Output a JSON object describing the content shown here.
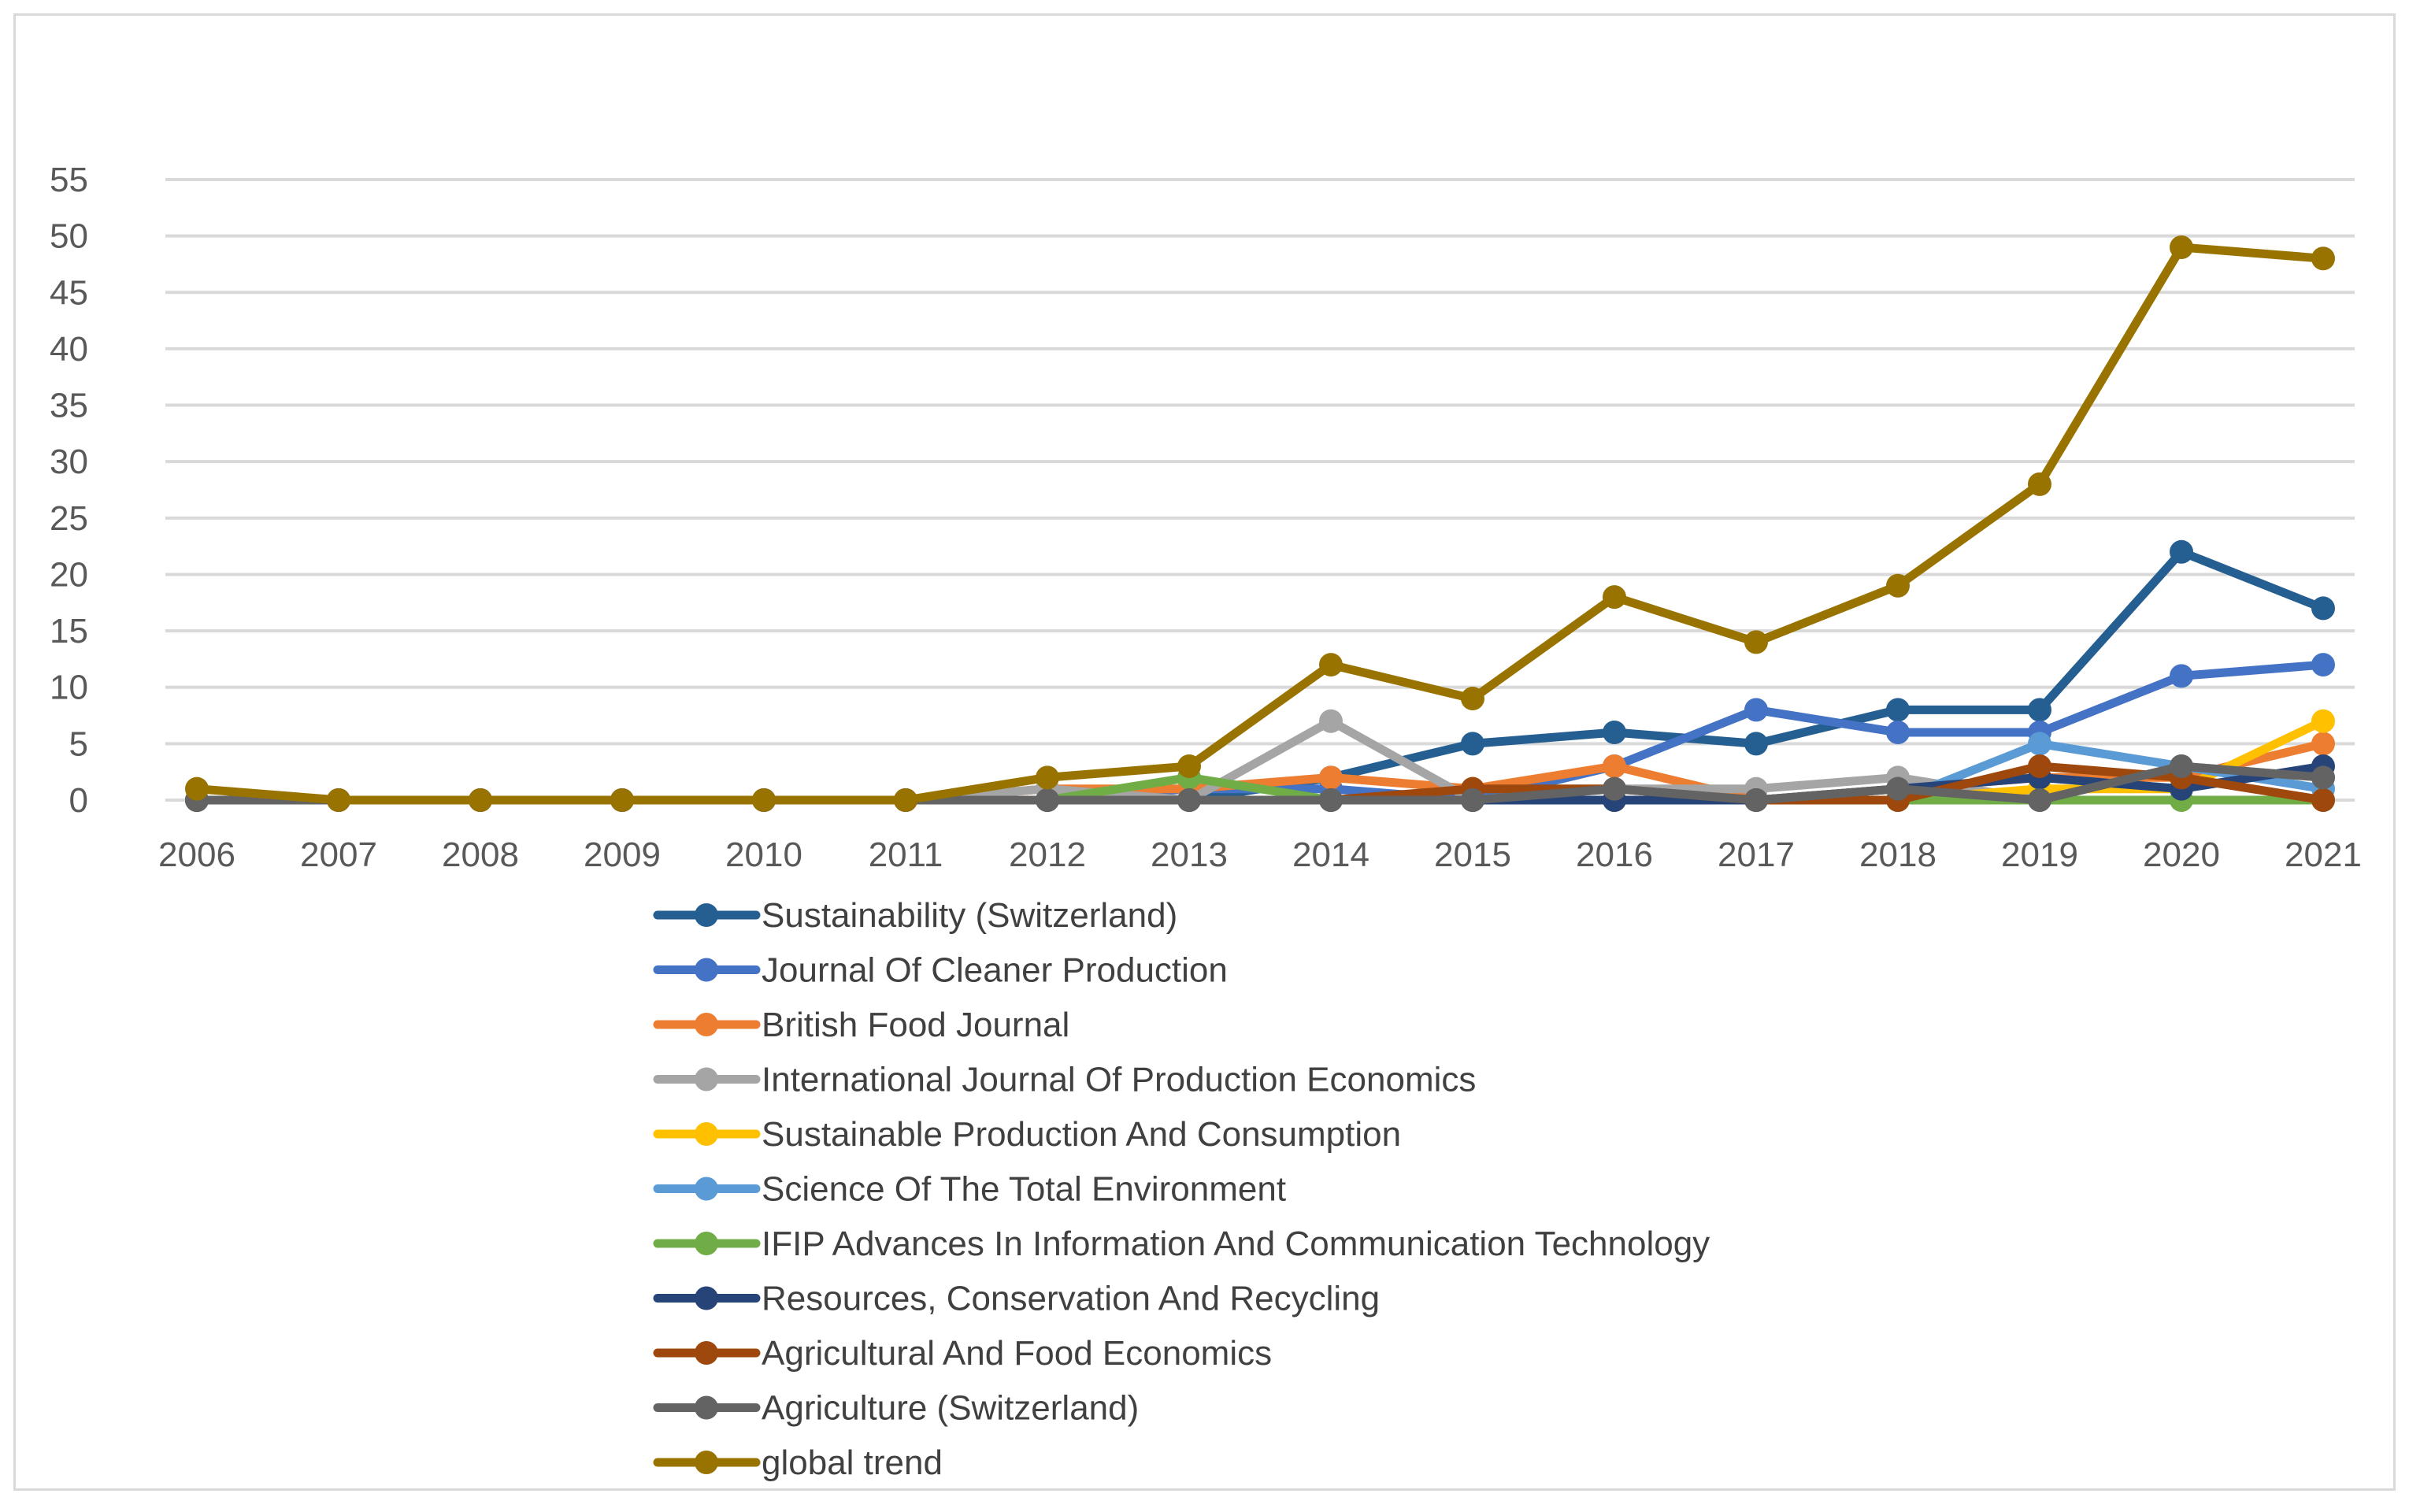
{
  "chart_data": {
    "type": "line",
    "title": "",
    "xlabel": "",
    "ylabel": "",
    "ylim": [
      0,
      55
    ],
    "yticks": [
      0,
      5,
      10,
      15,
      20,
      25,
      30,
      35,
      40,
      45,
      50,
      55
    ],
    "ytick_labels": [
      "0",
      "5",
      "10",
      "15",
      "20",
      "25",
      "30",
      "35",
      "40",
      "45",
      "50",
      "55"
    ],
    "grid": true,
    "legend_position": "bottom",
    "categories": [
      "2006",
      "2007",
      "2008",
      "2009",
      "2010",
      "2011",
      "2012",
      "2013",
      "2014",
      "2015",
      "2016",
      "2017",
      "2018",
      "2019",
      "2020",
      "2021"
    ],
    "series": [
      {
        "name": "Sustainability (Switzerland)",
        "color": "#255e91",
        "values": [
          0,
          0,
          0,
          0,
          0,
          0,
          0,
          0,
          2,
          5,
          6,
          5,
          8,
          8,
          22,
          17
        ]
      },
      {
        "name": "Journal Of Cleaner Production",
        "color": "#4472c4",
        "values": [
          0,
          0,
          0,
          0,
          0,
          0,
          0,
          1,
          1,
          0,
          3,
          8,
          6,
          6,
          11,
          12
        ]
      },
      {
        "name": "British Food Journal",
        "color": "#ed7d31",
        "values": [
          0,
          0,
          0,
          0,
          0,
          0,
          1,
          1,
          2,
          1,
          3,
          0,
          1,
          2,
          2,
          5
        ]
      },
      {
        "name": "International Journal Of Production Economics",
        "color": "#a5a5a5",
        "values": [
          0,
          0,
          0,
          0,
          0,
          0,
          1,
          0,
          7,
          0,
          1,
          1,
          2,
          0,
          3,
          2
        ]
      },
      {
        "name": "Sustainable Production And Consumption",
        "color": "#ffc000",
        "values": [
          0,
          0,
          0,
          0,
          0,
          0,
          0,
          0,
          0,
          0,
          0,
          0,
          0,
          1,
          1,
          7
        ]
      },
      {
        "name": "Science Of The Total Environment",
        "color": "#5b9bd5",
        "values": [
          0,
          0,
          0,
          0,
          0,
          0,
          0,
          0,
          0,
          0,
          0,
          0,
          0,
          5,
          3,
          1
        ]
      },
      {
        "name": "IFIP Advances In Information And Communication Technology",
        "color": "#70ad47",
        "values": [
          0,
          0,
          0,
          0,
          0,
          0,
          0,
          2,
          0,
          0,
          0,
          0,
          0,
          0,
          0,
          0
        ]
      },
      {
        "name": "Resources, Conservation And Recycling",
        "color": "#264478",
        "values": [
          0,
          0,
          0,
          0,
          0,
          0,
          0,
          0,
          0,
          0,
          0,
          0,
          1,
          2,
          1,
          3
        ]
      },
      {
        "name": "Agricultural And Food Economics",
        "color": "#9e480e",
        "values": [
          0,
          0,
          0,
          0,
          0,
          0,
          0,
          0,
          0,
          1,
          1,
          0,
          0,
          3,
          2,
          0
        ]
      },
      {
        "name": "Agriculture (Switzerland)",
        "color": "#636363",
        "values": [
          0,
          0,
          0,
          0,
          0,
          0,
          0,
          0,
          0,
          0,
          1,
          0,
          1,
          0,
          3,
          2
        ]
      },
      {
        "name": "global trend",
        "color": "#997300",
        "values": [
          1,
          0,
          0,
          0,
          0,
          0,
          2,
          3,
          12,
          9,
          18,
          14,
          19,
          28,
          49,
          48
        ]
      }
    ]
  }
}
